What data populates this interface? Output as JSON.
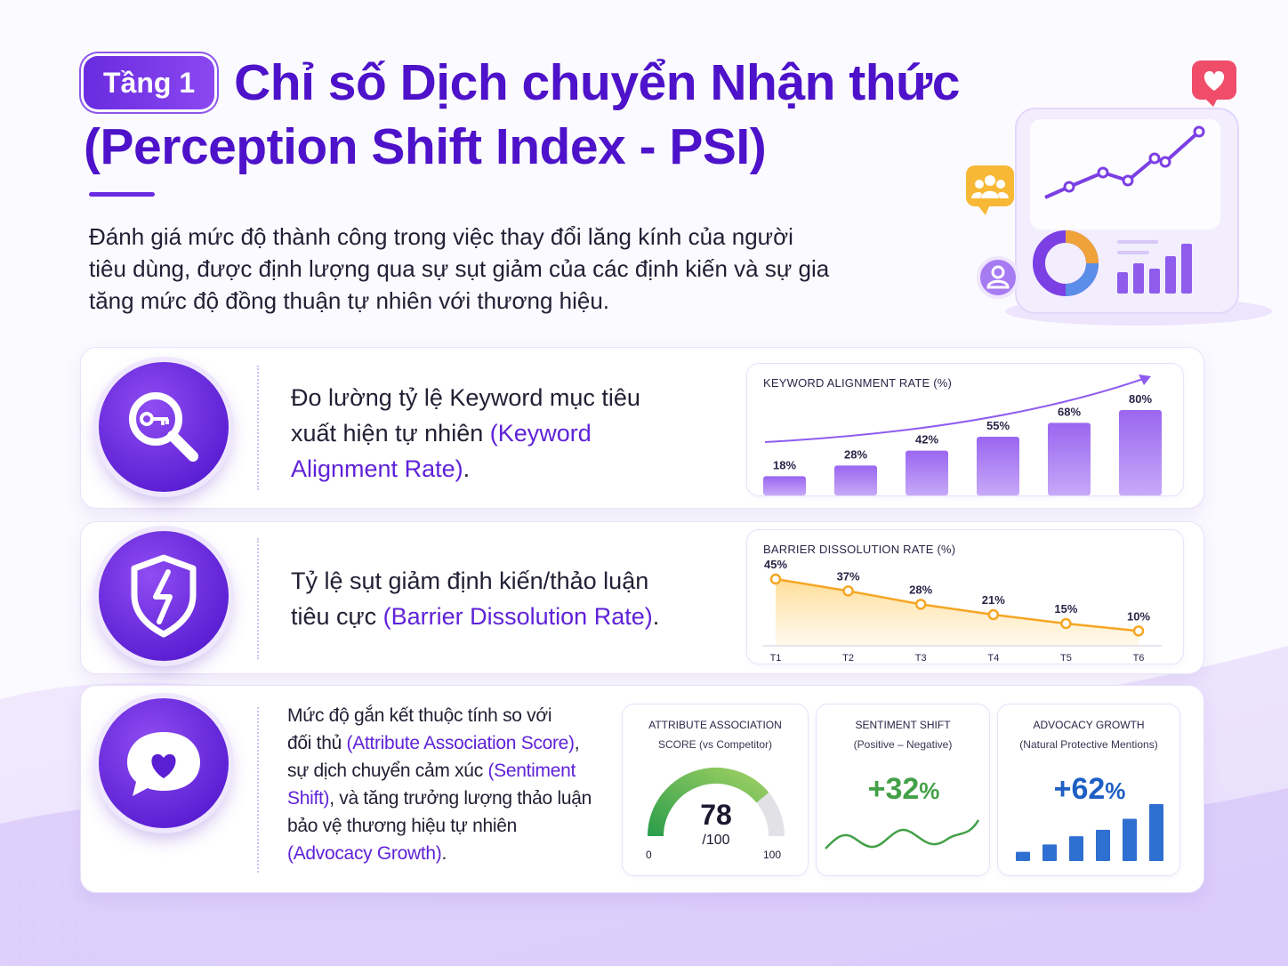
{
  "header": {
    "badge": "Tầng 1",
    "title_line1": "Chỉ số Dịch chuyển Nhận thức",
    "title_line2": "(Perception Shift Index - PSI)",
    "intro_line1": "Đánh giá mức độ thành công trong việc thay đổi lăng kính của người",
    "intro_line2": "tiêu dùng, được định lượng qua sự sụt giảm của các định kiến và sự gia",
    "intro_line3": "tăng mức độ đồng thuận tự nhiên với thương hiệu."
  },
  "icons": {
    "hero": "analytics-dashboard-icon",
    "heart_badge": "heart-icon",
    "group_badge": "users-icon",
    "user_badge": "user-icon",
    "card1": "keyword-search-icon",
    "card2": "broken-shield-icon",
    "card3": "heart-chat-icon"
  },
  "colors": {
    "brand": "#5b1fd3",
    "accent_text": "#5f22d8",
    "bar": "#a57af0",
    "line": "#f5a623",
    "gauge_green": "#4caf50",
    "sentiment": "#43a047",
    "advocacy": "#1e5fc4"
  },
  "card1": {
    "text_line1": "Đo lường tỷ lệ Keyword mục tiêu",
    "text_line2_a": "xuất hiện tự nhiên ",
    "text_line2_b": "(Keyword",
    "text_line3_a": "Alignment Rate)",
    "text_line3_b": "."
  },
  "card2": {
    "text_line1": "Tỷ lệ sụt giảm định kiến/thảo luận",
    "text_line2_a": "tiêu cực ",
    "text_line2_b": "(Barrier Dissolution Rate)",
    "text_line2_c": "."
  },
  "card3": {
    "l1": "Mức độ gắn kết thuộc tính so với",
    "l2_a": "đối thủ ",
    "l2_b": "(Attribute Association Score)",
    "l2_c": ",",
    "l3_a": "sự dịch chuyển cảm xúc ",
    "l3_b": "(Sentiment",
    "l4_a": "Shift)",
    "l4_b": ", và tăng trưởng lượng thảo luận",
    "l5": "bảo vệ thương hiệu tự nhiên",
    "l6_a": "(Advocacy Growth)",
    "l6_b": "."
  },
  "chart_data": [
    {
      "type": "bar",
      "title": "KEYWORD ALIGNMENT RATE (%)",
      "categories": [
        "",
        "",
        "",
        "",
        "",
        ""
      ],
      "values": [
        18,
        28,
        42,
        55,
        68,
        80
      ],
      "labels": [
        "18%",
        "28%",
        "42%",
        "55%",
        "68%",
        "80%"
      ],
      "trend_arrow": true,
      "ylim": [
        0,
        100
      ]
    },
    {
      "type": "area",
      "title": "BARRIER DISSOLUTION RATE (%)",
      "categories": [
        "T1",
        "T2",
        "T3",
        "T4",
        "T5",
        "T6"
      ],
      "values": [
        45,
        37,
        28,
        21,
        15,
        10
      ],
      "labels": [
        "45%",
        "37%",
        "28%",
        "21%",
        "15%",
        "10%"
      ],
      "ylim": [
        0,
        50
      ]
    },
    {
      "type": "gauge",
      "title_line1": "ATTRIBUTE ASSOCIATION",
      "title_line2": "SCORE (vs Competitor)",
      "value": 78,
      "value_label": "78",
      "max_label": "/100",
      "min_tick": "0",
      "max_tick": "100",
      "range": [
        0,
        100
      ]
    },
    {
      "type": "line",
      "title_line1": "SENTIMENT SHIFT",
      "title_line2": "(Positive – Negative)",
      "headline": "+32",
      "headline_unit": "%"
    },
    {
      "type": "bar",
      "title_line1": "ADVOCACY GROWTH",
      "title_line2": "(Natural Protective Mentions)",
      "headline": "+62",
      "headline_unit": "%",
      "values": [
        10,
        18,
        27,
        34,
        46,
        62
      ]
    }
  ]
}
